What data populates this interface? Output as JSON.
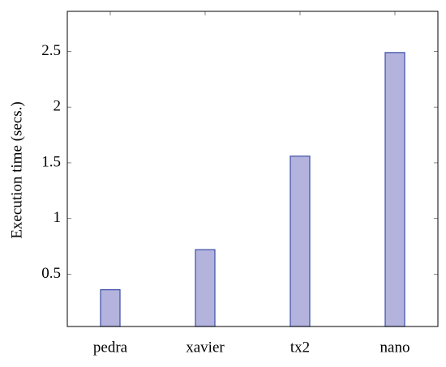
{
  "chart_data": {
    "type": "bar",
    "y_label": "Execution time (secs.)",
    "categories": [
      "pedra",
      "xavier",
      "tx2",
      "nano"
    ],
    "values": [
      0.36,
      0.72,
      1.56,
      2.49
    ],
    "color": "#b3b3dd",
    "edge_color": "#3a4ea6",
    "ylim": [
      0.03,
      2.86
    ],
    "yticks": [
      0.5,
      1,
      1.5,
      2,
      2.5
    ],
    "grid": false
  }
}
